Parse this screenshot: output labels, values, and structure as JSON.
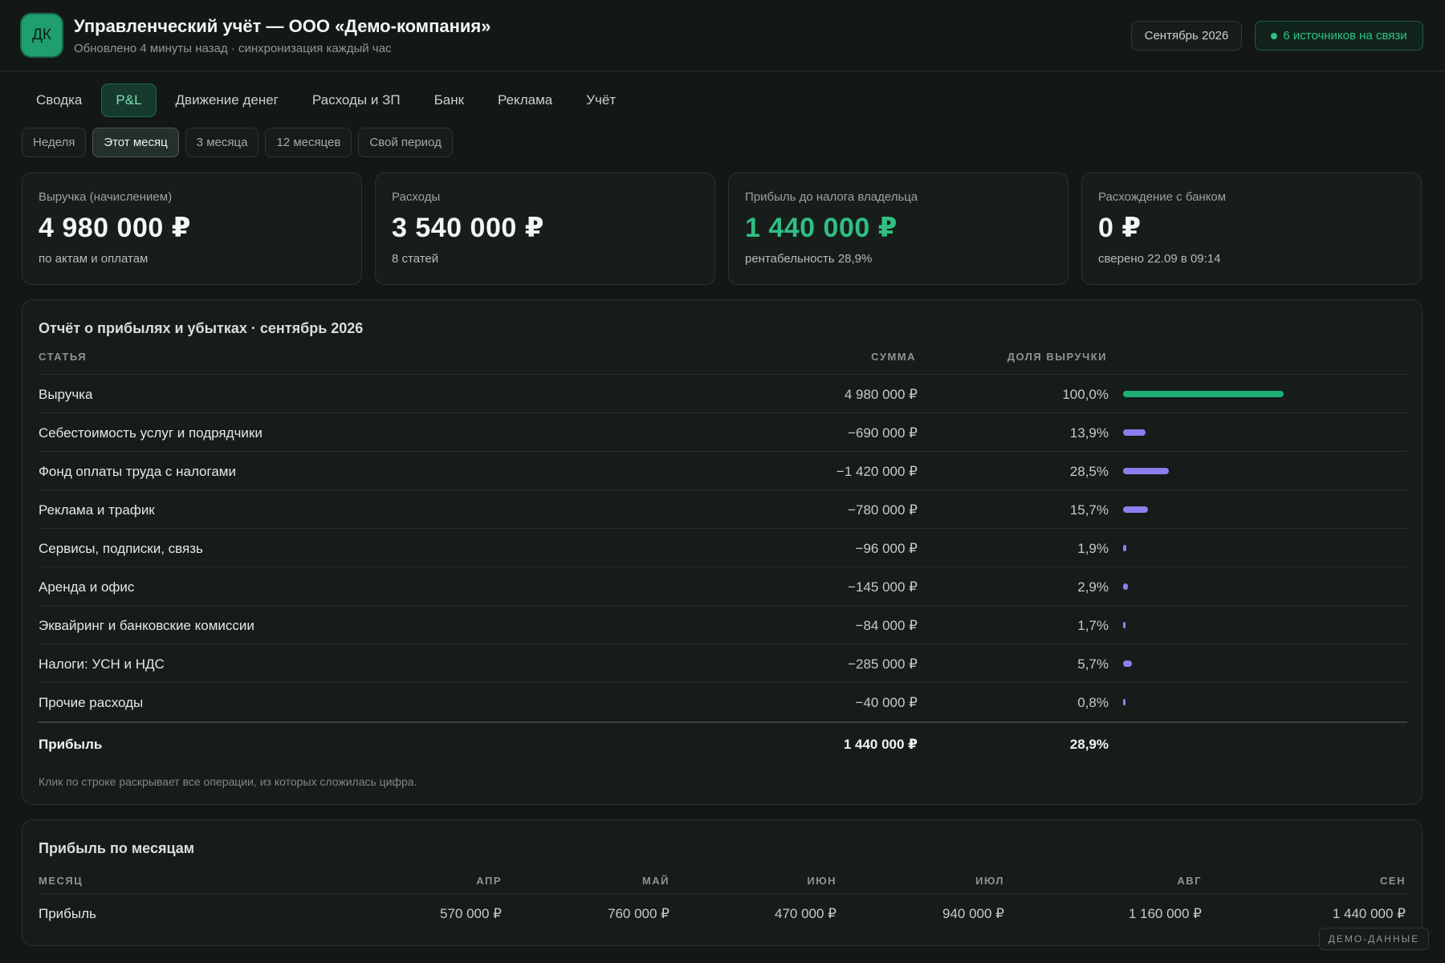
{
  "header": {
    "logo_initials": "ДК",
    "title": "Управленческий учёт — ООО «Демо-компания»",
    "subtitle": "Обновлено 4 минуты назад · синхронизация каждый час",
    "period": "Сентябрь 2026",
    "sources_status": "6 источников на связи",
    "accent_color": "#2ec387"
  },
  "tabs": [
    {
      "label": "Сводка",
      "active": false
    },
    {
      "label": "P&L",
      "active": true
    },
    {
      "label": "Движение денег",
      "active": false
    },
    {
      "label": "Расходы и ЗП",
      "active": false
    },
    {
      "label": "Банк",
      "active": false
    },
    {
      "label": "Реклама",
      "active": false
    },
    {
      "label": "Учёт",
      "active": false
    }
  ],
  "periods": [
    {
      "label": "Неделя",
      "active": false
    },
    {
      "label": "Этот месяц",
      "active": true
    },
    {
      "label": "3 месяца",
      "active": false
    },
    {
      "label": "12 месяцев",
      "active": false
    },
    {
      "label": "Свой период",
      "active": false
    }
  ],
  "kpis": [
    {
      "label": "Выручка (начислением)",
      "value": "4 980 000 ₽",
      "note": "по актам и оплатам"
    },
    {
      "label": "Расходы",
      "value": "3 540 000 ₽",
      "note": "8 статей"
    },
    {
      "label": "Прибыль до налога владельца",
      "value": "1 440 000 ₽",
      "note": "рентабельность 28,9%"
    },
    {
      "label": "Расхождение с банком",
      "value": "0 ₽",
      "note": "сверено 22.09 в 09:14"
    }
  ],
  "pl": {
    "title": "Отчёт о прибылях и убытках · сентябрь 2026",
    "col_item": "СТАТЬЯ",
    "col_amount": "СУММА",
    "col_share": "ДОЛЯ ВЫРУЧКИ",
    "rows": [
      {
        "name": "Выручка",
        "amount": "4 980 000 ₽",
        "share": "100,0%",
        "share_value": 100.0,
        "type": "revenue"
      },
      {
        "name": "Себестоимость услуг и подрядчики",
        "amount": "−690 000 ₽",
        "share": "13,9%",
        "share_value": 13.9,
        "type": "expense"
      },
      {
        "name": "Фонд оплаты труда с налогами",
        "amount": "−1 420 000 ₽",
        "share": "28,5%",
        "share_value": 28.5,
        "type": "expense"
      },
      {
        "name": "Реклама и трафик",
        "amount": "−780 000 ₽",
        "share": "15,7%",
        "share_value": 15.7,
        "type": "expense"
      },
      {
        "name": "Сервисы, подписки, связь",
        "amount": "−96 000 ₽",
        "share": "1,9%",
        "share_value": 1.9,
        "type": "expense"
      },
      {
        "name": "Аренда и офис",
        "amount": "−145 000 ₽",
        "share": "2,9%",
        "share_value": 2.9,
        "type": "expense"
      },
      {
        "name": "Эквайринг и банковские комиссии",
        "amount": "−84 000 ₽",
        "share": "1,7%",
        "share_value": 1.7,
        "type": "expense"
      },
      {
        "name": "Налоги: УСН и НДС",
        "amount": "−285 000 ₽",
        "share": "5,7%",
        "share_value": 5.7,
        "type": "expense"
      },
      {
        "name": "Прочие расходы",
        "amount": "−40 000 ₽",
        "share": "0,8%",
        "share_value": 0.8,
        "type": "expense"
      }
    ],
    "total": {
      "name": "Прибыль",
      "amount": "1 440 000 ₽",
      "share": "28,9%"
    },
    "hint": "Клик по строке раскрывает все операции, из которых сложилась цифра.",
    "bar_colors": {
      "revenue": "#1fae73",
      "expense": "#8b7ff0"
    }
  },
  "months": {
    "title": "Прибыль по месяцам",
    "col_month": "МЕСЯЦ",
    "row_label": "Прибыль",
    "columns": [
      {
        "month": "АПР",
        "value": "570 000 ₽"
      },
      {
        "month": "МАЙ",
        "value": "760 000 ₽"
      },
      {
        "month": "ИЮН",
        "value": "470 000 ₽"
      },
      {
        "month": "ИЮЛ",
        "value": "940 000 ₽"
      },
      {
        "month": "АВГ",
        "value": "1 160 000 ₽"
      },
      {
        "month": "СЕН",
        "value": "1 440 000 ₽"
      }
    ]
  },
  "demo_badge": "ДЕМО-ДАННЫЕ"
}
